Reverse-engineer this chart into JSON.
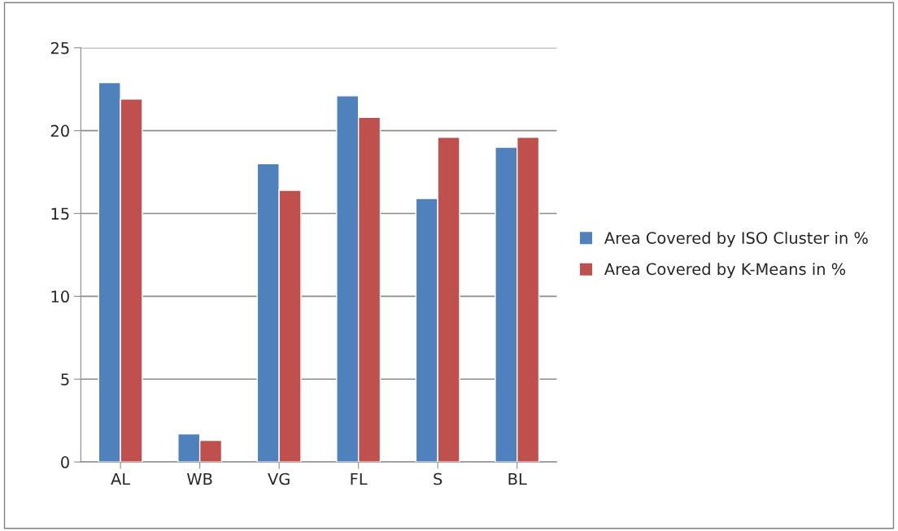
{
  "chart_data": {
    "type": "bar",
    "categories": [
      "AL",
      "WB",
      "VG",
      "FL",
      "S",
      "BL"
    ],
    "series": [
      {
        "name": "Area Covered by ISO Cluster in %",
        "color": "#4f81bd",
        "values": [
          22.9,
          1.7,
          18.0,
          22.1,
          15.9,
          19.0
        ]
      },
      {
        "name": "Area Covered by K-Means in %",
        "color": "#c0504d",
        "values": [
          21.9,
          1.3,
          16.4,
          20.8,
          19.6,
          19.6
        ]
      }
    ],
    "ylim": [
      0,
      25
    ],
    "yticks": [
      0,
      5,
      10,
      15,
      20,
      25
    ],
    "grid": "y",
    "legend": "right"
  }
}
